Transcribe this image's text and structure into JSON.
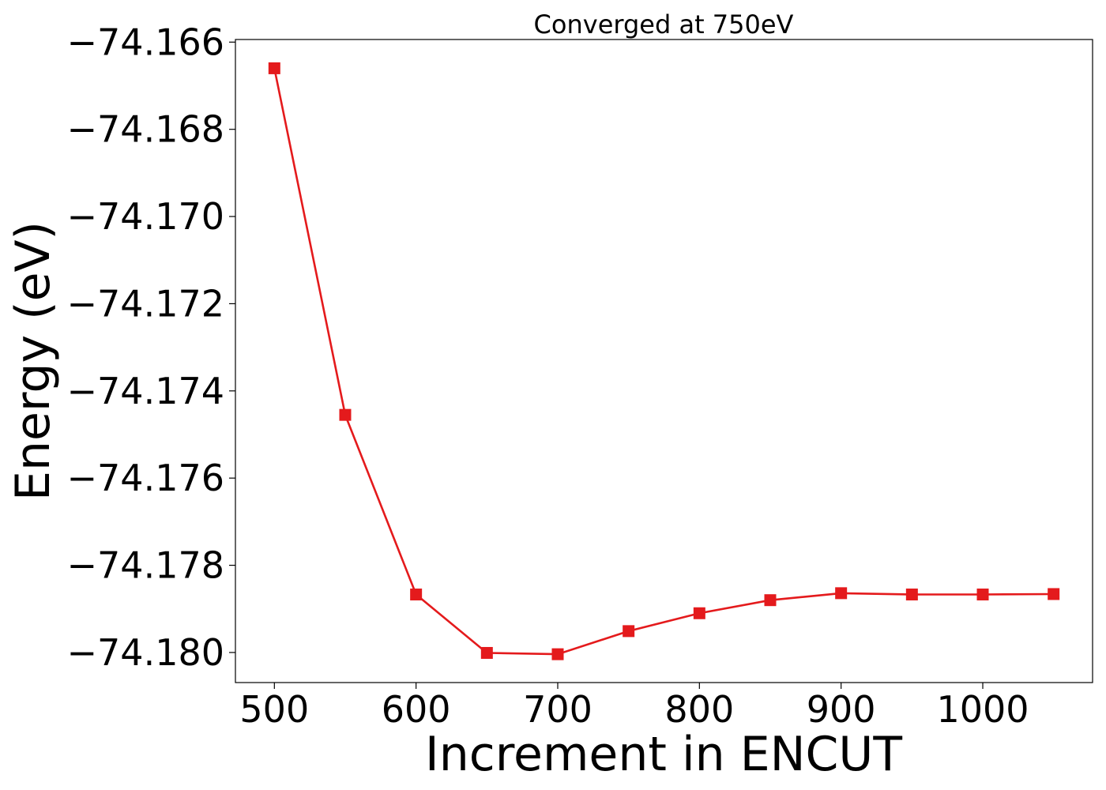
{
  "chart_data": {
    "type": "line",
    "title": "Converged at 750eV",
    "xlabel": "Increment in ENCUT",
    "ylabel": "Energy (eV)",
    "x": [
      500,
      550,
      600,
      650,
      700,
      750,
      800,
      850,
      900,
      950,
      1000,
      1050
    ],
    "series": [
      {
        "name": "",
        "color": "#e41a1c",
        "marker": "square",
        "values": [
          -74.1666,
          -74.17455,
          -74.17867,
          -74.18001,
          -74.18004,
          -74.17951,
          -74.1791,
          -74.1788,
          -74.17864,
          -74.17867,
          -74.17867,
          -74.17866
        ]
      }
    ],
    "xticks": [
      500,
      600,
      700,
      800,
      900,
      1000
    ],
    "xtick_labels": [
      "500",
      "600",
      "700",
      "800",
      "900",
      "1000"
    ],
    "yticks": [
      -74.166,
      -74.168,
      -74.17,
      -74.172,
      -74.174,
      -74.176,
      -74.178,
      -74.18
    ],
    "ytick_labels": [
      "−74.166",
      "−74.168",
      "−74.170",
      "−74.172",
      "−74.174",
      "−74.176",
      "−74.178",
      "−74.180"
    ],
    "xlim": [
      472.5,
      1077.5
    ],
    "ylim": [
      -74.18069,
      -74.16594
    ],
    "grid": false,
    "legend": "none"
  }
}
